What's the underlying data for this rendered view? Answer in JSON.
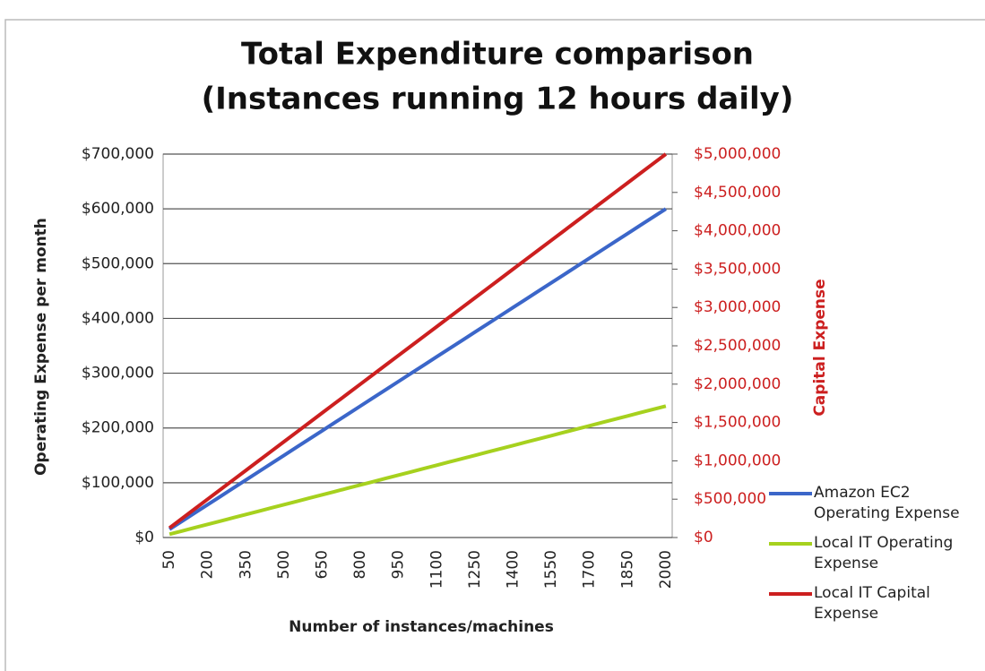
{
  "chart_data": {
    "type": "line",
    "title": "Total Expenditure comparison",
    "subtitle": "(Instances  running 12 hours daily)",
    "x_label": "Number of instances/machines",
    "y_label": "Operating Expense per month",
    "y2_label": "Capital Expense",
    "categories": [
      "50",
      null,
      null,
      "200",
      null,
      null,
      "350",
      null,
      null,
      "500",
      null,
      null,
      "650",
      null,
      null,
      "800",
      null,
      null,
      "950",
      null,
      null,
      "1100",
      null,
      null,
      "1250",
      null,
      null,
      "1400",
      null,
      null,
      "1550",
      null,
      null,
      "1700",
      null,
      null,
      "1850",
      null,
      null,
      "2000"
    ],
    "series": [
      {
        "name": "Amazon EC2 Operating Expense",
        "color": "#3b66c9",
        "values": [
          15000,
          30000,
          45000,
          60000,
          75000,
          90000,
          105000,
          120000,
          135000,
          150000,
          165000,
          180000,
          195000,
          210000,
          225000,
          240000,
          255000,
          270000,
          285000,
          300000,
          315000,
          330000,
          345000,
          360000,
          375000,
          390000,
          405000,
          420000,
          435000,
          450000,
          465000,
          480000,
          495000,
          510000,
          525000,
          540000,
          555000,
          570000,
          585000,
          600000
        ]
      },
      {
        "name": "Local IT Operating Expense",
        "color": "#a6d11e",
        "values": [
          6000,
          12000,
          18000,
          24000,
          30000,
          36000,
          42000,
          48000,
          54000,
          60000,
          66000,
          72000,
          78000,
          84000,
          90000,
          96000,
          102000,
          108000,
          114000,
          120000,
          126000,
          132000,
          138000,
          144000,
          150000,
          156000,
          162000,
          168000,
          174000,
          180000,
          186000,
          192000,
          198000,
          204000,
          210000,
          216000,
          222000,
          228000,
          234000,
          240000
        ]
      },
      {
        "name": "Local IT Capital Expense",
        "color": "#cc1f1f",
        "axis": "y2",
        "values": [
          125000,
          250000,
          375000,
          500000,
          625000,
          750000,
          875000,
          1000000,
          1125000,
          1250000,
          1375000,
          1500000,
          1625000,
          1750000,
          1875000,
          2000000,
          2125000,
          2250000,
          2375000,
          2500000,
          2625000,
          2750000,
          2875000,
          3000000,
          3125000,
          3250000,
          3375000,
          3500000,
          3625000,
          3750000,
          3875000,
          4000000,
          4125000,
          4250000,
          4375000,
          4500000,
          4625000,
          4750000,
          4875000,
          5000000
        ]
      }
    ],
    "ylim": [
      0,
      700000
    ],
    "yticks": [
      {
        "value": 0,
        "label": "$0"
      },
      {
        "value": 100000,
        "label": "$100,000"
      },
      {
        "value": 200000,
        "label": "$200,000"
      },
      {
        "value": 300000,
        "label": "$300,000"
      },
      {
        "value": 400000,
        "label": "$400,000"
      },
      {
        "value": 500000,
        "label": "$500,000"
      },
      {
        "value": 600000,
        "label": "$600,000"
      },
      {
        "value": 700000,
        "label": "$700,000"
      }
    ],
    "y2lim": [
      0,
      5000000
    ],
    "y2ticks": [
      {
        "value": 0,
        "label": "$0"
      },
      {
        "value": 500000,
        "label": "$500,000"
      },
      {
        "value": 1000000,
        "label": "$1,000,000"
      },
      {
        "value": 1500000,
        "label": "$1,500,000"
      },
      {
        "value": 2000000,
        "label": "$2,000,000"
      },
      {
        "value": 2500000,
        "label": "$2,500,000"
      },
      {
        "value": 3000000,
        "label": "$3,000,000"
      },
      {
        "value": 3500000,
        "label": "$3,500,000"
      },
      {
        "value": 4000000,
        "label": "$4,000,000"
      },
      {
        "value": 4500000,
        "label": "$4,500,000"
      },
      {
        "value": 5000000,
        "label": "$5,000,000"
      }
    ],
    "grid": true,
    "legend": "right"
  }
}
